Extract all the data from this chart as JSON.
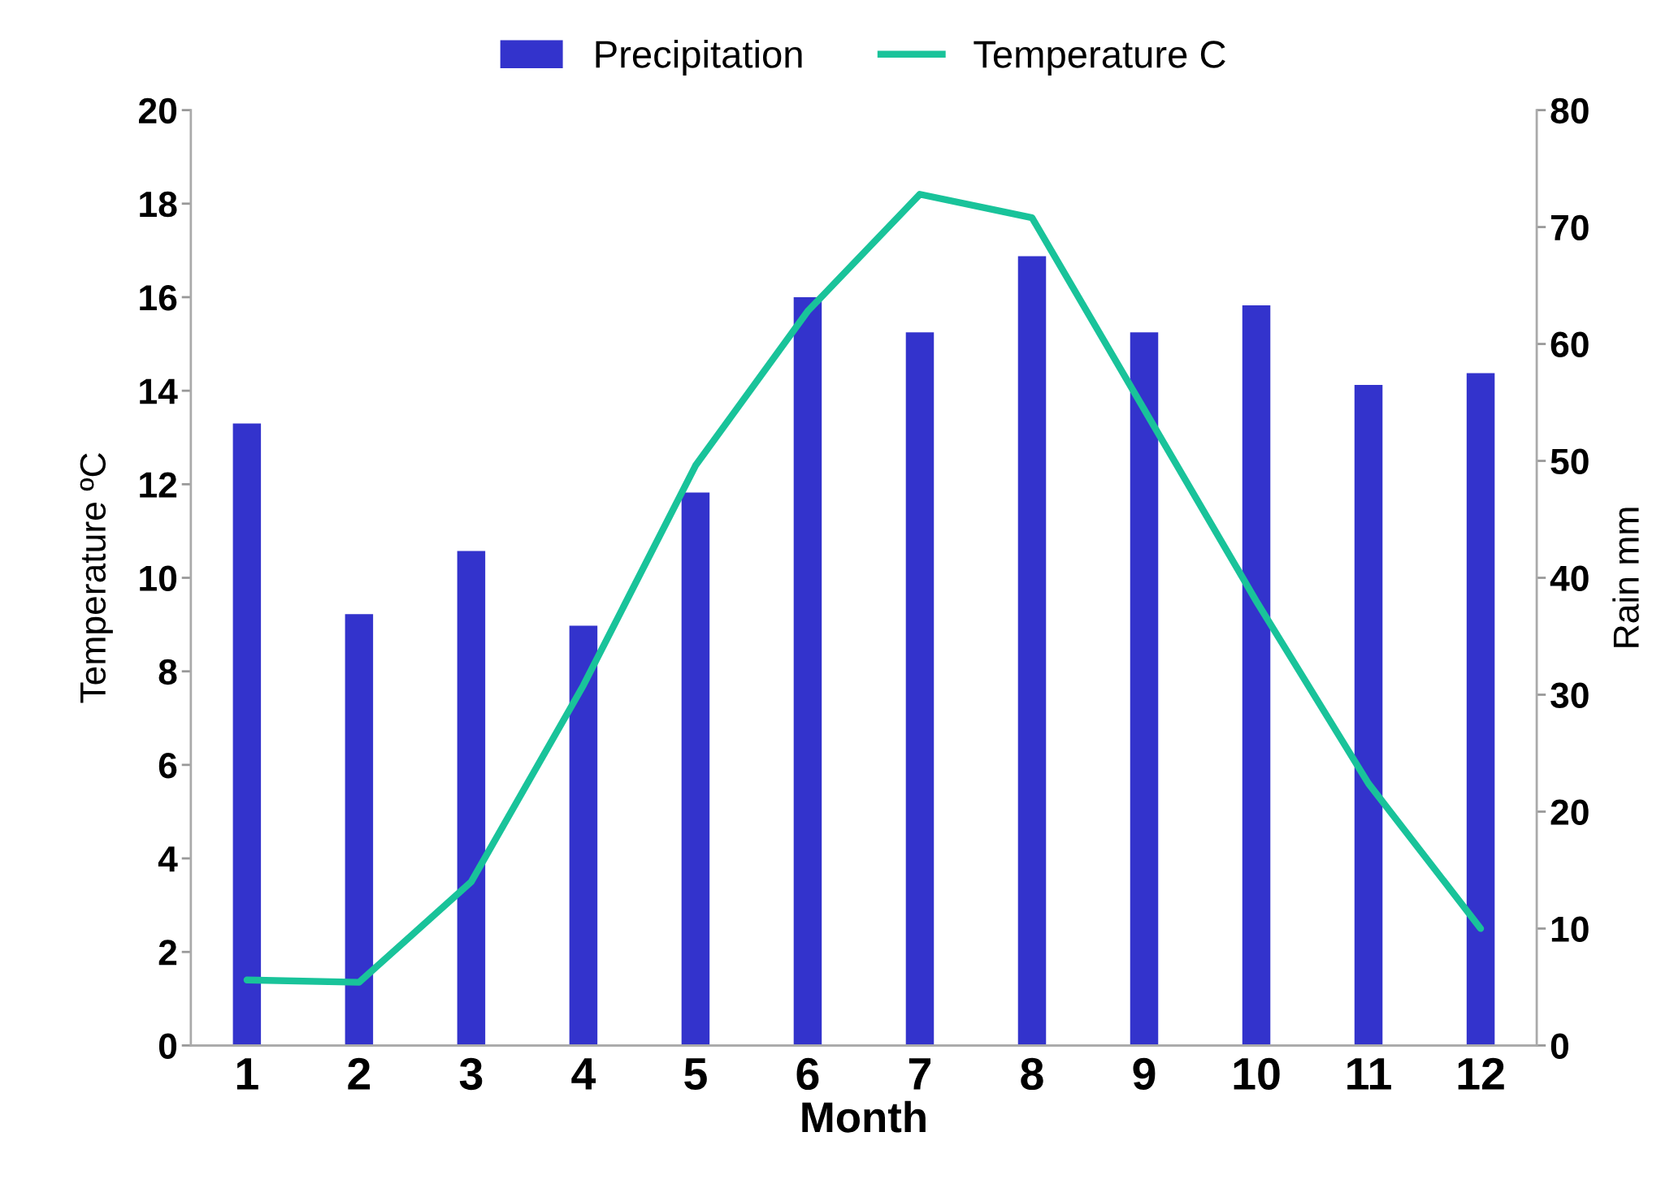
{
  "chart_data": {
    "type": "bar",
    "xlabel": "Month",
    "ylabel": "Temperature ºC",
    "y2label": "Rain mm",
    "categories": [
      "1",
      "2",
      "3",
      "4",
      "5",
      "6",
      "7",
      "8",
      "9",
      "10",
      "11",
      "12"
    ],
    "series": [
      {
        "name": "Precipitation",
        "axis": "y2",
        "color": "#3333cc",
        "values": [
          53.2,
          36.9,
          42.3,
          35.9,
          47.3,
          64.0,
          61.0,
          67.5,
          61.0,
          63.3,
          56.5,
          57.5
        ]
      },
      {
        "name": "Temperature C",
        "type": "line",
        "axis": "y",
        "color": "#19c39a",
        "values": [
          1.4,
          1.35,
          3.5,
          7.7,
          12.4,
          15.7,
          18.2,
          17.7,
          13.6,
          9.5,
          5.6,
          2.5
        ]
      }
    ],
    "ylim": [
      0,
      20
    ],
    "yticks": [
      0,
      2,
      4,
      6,
      8,
      10,
      12,
      14,
      16,
      18,
      20
    ],
    "y2lim": [
      0,
      80
    ],
    "y2ticks": [
      0,
      10,
      20,
      30,
      40,
      50,
      60,
      70,
      80
    ],
    "legend": "top",
    "grid": false,
    "marker": "none",
    "line_style": "solid"
  }
}
